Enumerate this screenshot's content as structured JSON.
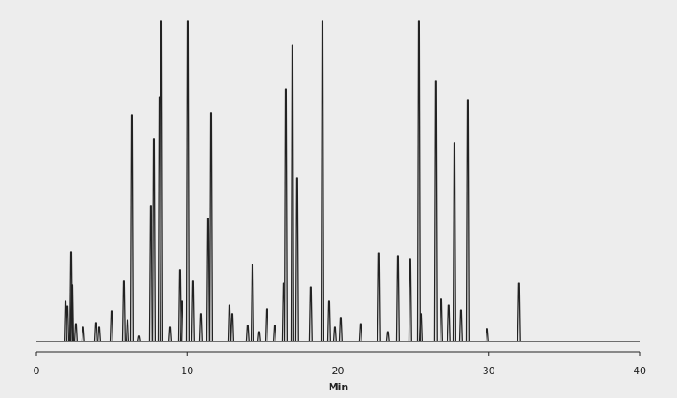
{
  "chart_data": {
    "type": "chromatogram",
    "x_label": "Min",
    "xlim": [
      0,
      40
    ],
    "xticks": [
      0,
      10,
      20,
      30,
      40
    ],
    "ylim": [
      0,
      100
    ],
    "color": "#222222",
    "series": [
      {
        "x": [
          1.94,
          2.06,
          2.29,
          2.35,
          2.64,
          3.1,
          3.93,
          4.17,
          4.99,
          5.81,
          6.05,
          6.34,
          6.81,
          7.57,
          7.81,
          8.16,
          8.28,
          8.87,
          9.51,
          9.63,
          10.04,
          10.39,
          10.92,
          11.39,
          11.57,
          12.8,
          12.98,
          14.03,
          14.33,
          14.74,
          15.27,
          15.8,
          16.38,
          16.56,
          16.97,
          17.26,
          18.2,
          18.97,
          19.38,
          19.79,
          20.2,
          21.49,
          22.72,
          23.31,
          23.96,
          24.78,
          25.37,
          25.49,
          26.48,
          26.84,
          27.36,
          27.72,
          28.13,
          28.6,
          29.89,
          32
        ],
        "values": [
          12.7,
          11,
          27.9,
          17.7,
          5.5,
          4.4,
          5.8,
          4.4,
          9.4,
          18.8,
          6.6,
          70.7,
          1.7,
          42.3,
          63.3,
          76.2,
          100,
          4.4,
          22.4,
          12.7,
          100,
          18.8,
          8.6,
          38.4,
          71.3,
          11.3,
          8.6,
          5,
          24,
          3,
          10.2,
          5,
          18.2,
          78.7,
          92.5,
          51.1,
          17.1,
          100,
          12.7,
          4.4,
          7.5,
          5.5,
          27.6,
          3,
          26.8,
          25.7,
          100,
          8.6,
          81.2,
          13.3,
          11.3,
          61.9,
          9.9,
          75.4,
          3.9,
          18.2
        ]
      }
    ]
  }
}
